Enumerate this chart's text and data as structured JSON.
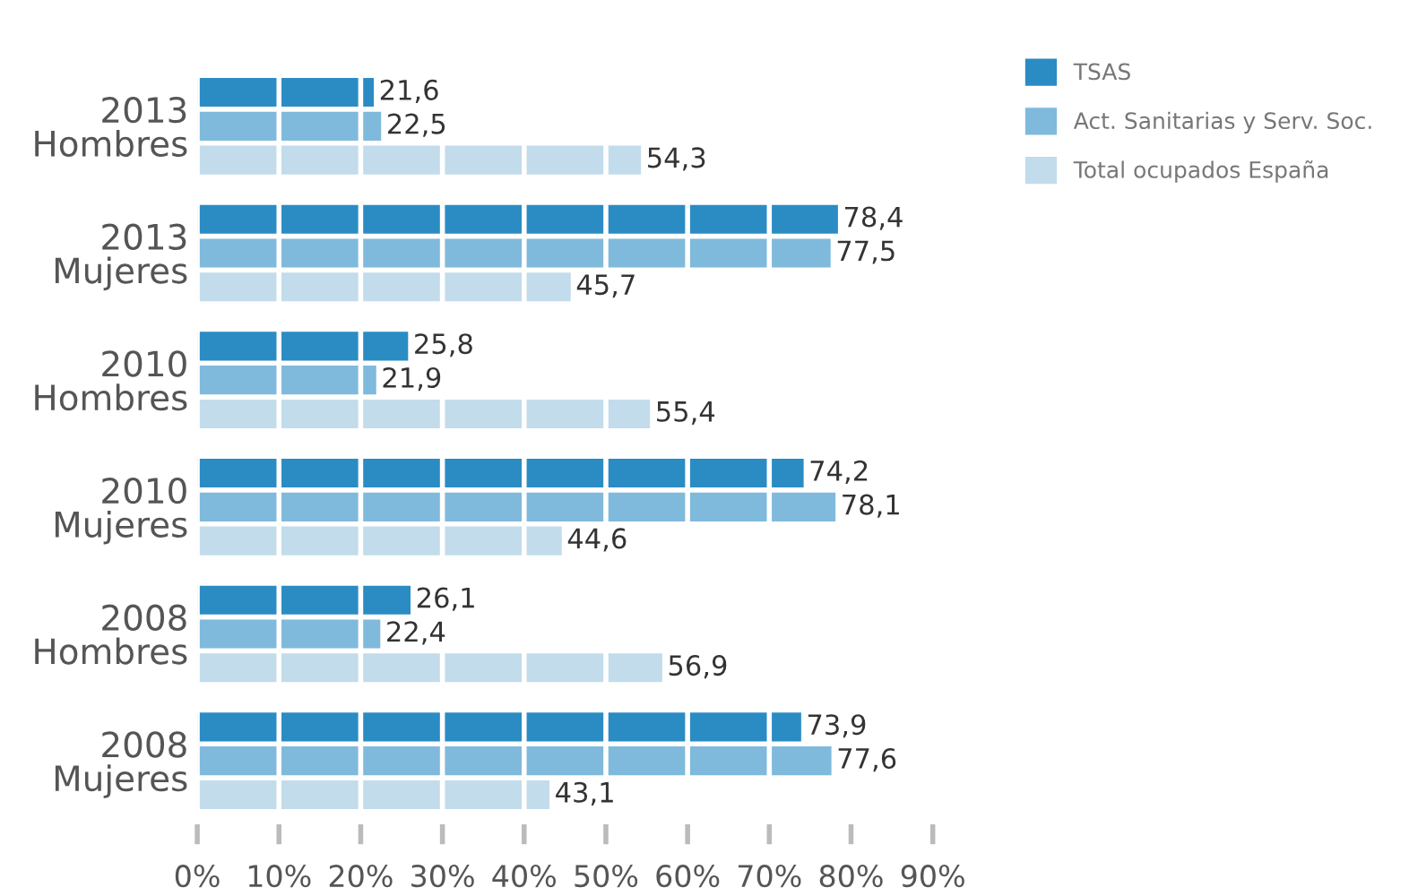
{
  "chart_data": {
    "type": "bar",
    "orientation": "horizontal",
    "categories": [
      "2013\nHombres",
      "2013\nMujeres",
      "2010\nHombres",
      "2010\nMujeres",
      "2008\nHombres",
      "2008\nMujeres"
    ],
    "series": [
      {
        "name": "TSAS",
        "color": "#2b8cc4",
        "values": [
          21.6,
          78.4,
          25.8,
          74.2,
          26.1,
          73.9
        ],
        "value_labels": [
          "21,6",
          "78,4",
          "25,8",
          "74,2",
          "26,1",
          "73,9"
        ]
      },
      {
        "name": "Act. Sanitarias y Serv. Soc.",
        "color": "#7fbadc",
        "values": [
          22.5,
          77.5,
          21.9,
          78.1,
          22.4,
          77.6
        ],
        "value_labels": [
          "22,5",
          "77,5",
          "21,9",
          "78,1",
          "22,4",
          "77,6"
        ]
      },
      {
        "name": "Total ocupados España",
        "color": "#c2dcec",
        "values": [
          54.3,
          45.7,
          55.4,
          44.6,
          56.9,
          43.1
        ],
        "value_labels": [
          "54,3",
          "45,7",
          "55,4",
          "44,6",
          "56,9",
          "43,1"
        ]
      }
    ],
    "xlim": [
      0,
      90
    ],
    "xticks": [
      {
        "value": 0,
        "label": "0%"
      },
      {
        "value": 10,
        "label": "10%"
      },
      {
        "value": 20,
        "label": "20%"
      },
      {
        "value": 30,
        "label": "30%"
      },
      {
        "value": 40,
        "label": "40%"
      },
      {
        "value": 50,
        "label": "50%"
      },
      {
        "value": 60,
        "label": "60%"
      },
      {
        "value": 70,
        "label": "70%"
      },
      {
        "value": 80,
        "label": "80%"
      },
      {
        "value": 90,
        "label": "90%"
      }
    ],
    "grid": "x",
    "legend": "top right"
  }
}
